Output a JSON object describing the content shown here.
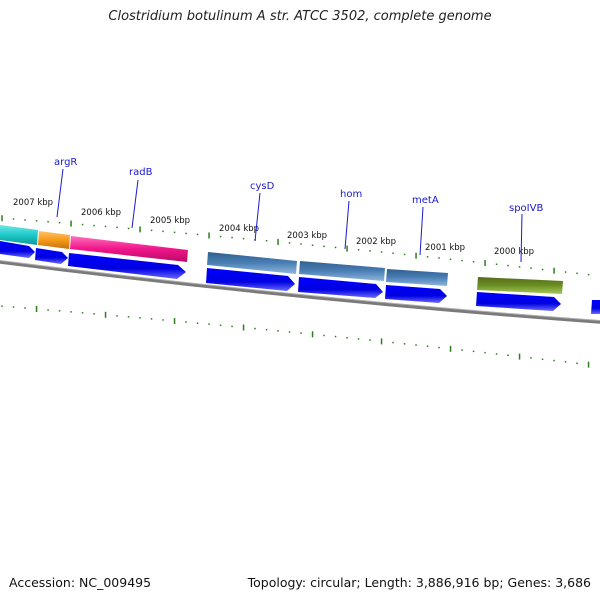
{
  "title": "Clostridium botulinum A str. ATCC 3502, complete genome",
  "accession": "Accession: NC_009495",
  "summary": "Topology: circular; Length: 3,886,916 bp; Genes: 3,686",
  "tick_labels": [
    "2007 kbp",
    "2006 kbp",
    "2005 kbp",
    "2004 kbp",
    "2003 kbp",
    "2002 kbp",
    "2001 kbp",
    "2000 kbp"
  ],
  "gene_labels": [
    "argR",
    "radB",
    "cysD",
    "hom",
    "metA",
    "spoIVB"
  ],
  "colors": {
    "tick_green": "#2e7d1f",
    "label_blue": "#1a1acc",
    "cds_blue": "#0000ee",
    "backbone_gray": "#808080",
    "cyan_feature": "#1ec8c8",
    "orange_feature": "#f59a1a",
    "pink_feature": "#f0158a",
    "steelblue_feature": "#4a7fb5",
    "olive_feature": "#6b8e23"
  }
}
